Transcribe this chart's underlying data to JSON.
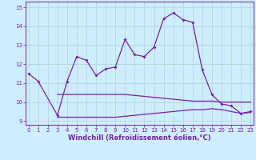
{
  "title": "",
  "xlabel": "Windchill (Refroidissement éolien,°C)",
  "ylabel": "",
  "background_color": "#cceeff",
  "line_color": "#7b1fa2",
  "grid_color": "#b0d4cc",
  "x_values": [
    0,
    1,
    2,
    3,
    4,
    5,
    6,
    7,
    8,
    9,
    10,
    11,
    12,
    13,
    14,
    15,
    16,
    17,
    18,
    19,
    20,
    21,
    22,
    23
  ],
  "temp_line": [
    11.5,
    11.1,
    null,
    9.3,
    11.1,
    12.4,
    12.2,
    11.4,
    11.75,
    11.85,
    13.3,
    12.5,
    12.4,
    12.9,
    14.4,
    14.7,
    14.35,
    14.2,
    11.7,
    10.4,
    9.9,
    9.8,
    9.4,
    9.5
  ],
  "upper_line": [
    null,
    null,
    null,
    10.4,
    10.4,
    10.4,
    10.4,
    10.4,
    10.4,
    10.4,
    10.4,
    10.35,
    10.3,
    10.25,
    10.2,
    10.15,
    10.1,
    10.05,
    10.05,
    10.05,
    10.0,
    10.0,
    10.0,
    10.0
  ],
  "lower_line": [
    null,
    null,
    null,
    9.2,
    9.2,
    9.2,
    9.2,
    9.2,
    9.2,
    9.2,
    9.25,
    9.3,
    9.35,
    9.4,
    9.45,
    9.5,
    9.55,
    9.6,
    9.6,
    9.65,
    9.6,
    9.5,
    9.4,
    9.45
  ],
  "ylim": [
    8.8,
    15.3
  ],
  "xlim": [
    -0.3,
    23.3
  ],
  "yticks": [
    9,
    10,
    11,
    12,
    13,
    14,
    15
  ],
  "xticks": [
    0,
    1,
    2,
    3,
    4,
    5,
    6,
    7,
    8,
    9,
    10,
    11,
    12,
    13,
    14,
    15,
    16,
    17,
    18,
    19,
    20,
    21,
    22,
    23
  ],
  "tick_fontsize": 5,
  "xlabel_fontsize": 6
}
